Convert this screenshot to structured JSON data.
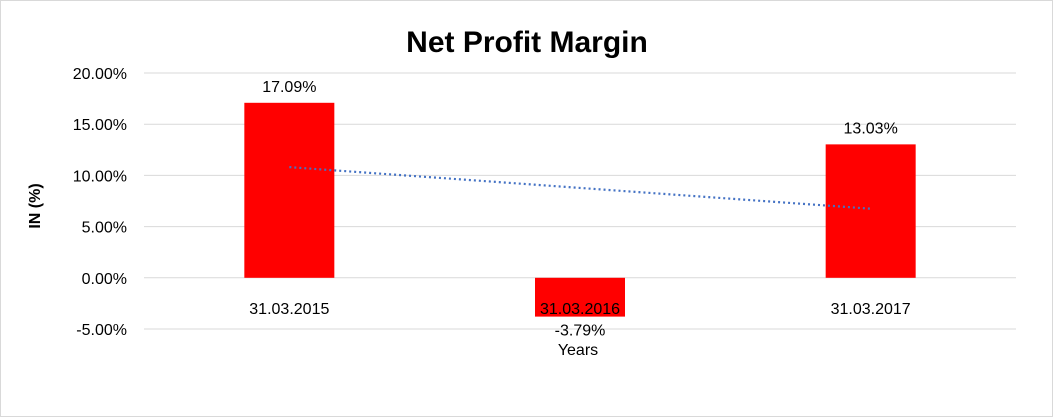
{
  "chart_data": {
    "type": "bar",
    "title": "Net Profit Margin",
    "xlabel": "Years",
    "ylabel": "IN (%)",
    "categories": [
      "31.03.2015",
      "31.03.2016",
      "31.03.2017"
    ],
    "values": [
      17.09,
      -3.79,
      13.03
    ],
    "data_labels": [
      "17.09%",
      "-3.79%",
      "13.03%"
    ],
    "y_ticks": [
      "20.00%",
      "15.00%",
      "10.00%",
      "5.00%",
      "0.00%",
      "-5.00%"
    ],
    "y_tick_values": [
      20,
      15,
      10,
      5,
      0,
      -5
    ],
    "ylim": [
      -5,
      20
    ],
    "grid": true,
    "legend": "none",
    "trendline": {
      "type": "linear",
      "style": "dotted"
    },
    "colors": {
      "bar": "#ff0000",
      "trendline": "#4472c4",
      "grid": "#d9d9d9"
    }
  }
}
